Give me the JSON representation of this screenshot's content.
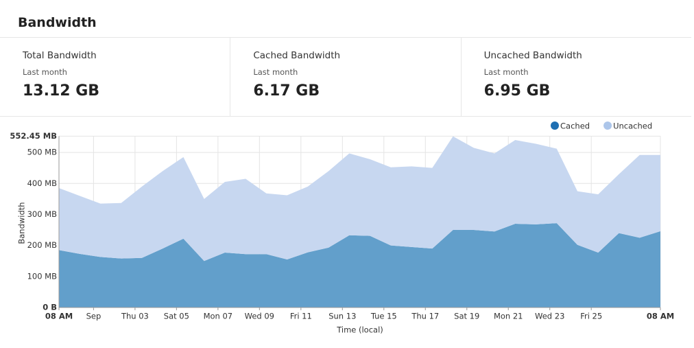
{
  "header": {
    "title": "Bandwidth"
  },
  "stats": [
    {
      "label": "Total Bandwidth",
      "period": "Last month",
      "value": "13.12 GB"
    },
    {
      "label": "Cached Bandwidth",
      "period": "Last month",
      "value": "6.17 GB"
    },
    {
      "label": "Uncached Bandwidth",
      "period": "Last month",
      "value": "6.95 GB"
    }
  ],
  "chart_data": {
    "type": "stacked-area",
    "ylabel": "Bandwidth",
    "xlabel": "Time (local)",
    "x": [
      0,
      1,
      2,
      3,
      4,
      5,
      6,
      7,
      8,
      9,
      10,
      11,
      12,
      13,
      14,
      15,
      16,
      17,
      18,
      19,
      20,
      21,
      22,
      23,
      24,
      25,
      26,
      27,
      28,
      29
    ],
    "series": [
      {
        "name": "Cached",
        "color": "#629fcb",
        "legend_color": "#1f6fb2",
        "values": [
          185,
          173,
          163,
          158,
          160,
          190,
          222,
          150,
          177,
          172,
          172,
          155,
          178,
          193,
          233,
          231,
          200,
          195,
          190,
          250,
          250,
          245,
          270,
          268,
          272,
          202,
          177,
          240,
          225,
          246
        ]
      },
      {
        "name": "Uncached",
        "color": "#c7d7f0",
        "legend_color": "#adc6ea",
        "values": [
          200,
          187,
          172,
          179,
          230,
          250,
          263,
          200,
          228,
          243,
          196,
          207,
          212,
          247,
          264,
          247,
          252,
          260,
          260,
          302,
          265,
          252,
          270,
          260,
          240,
          173,
          188,
          190,
          267,
          246
        ]
      }
    ],
    "xlim": [
      0,
      29
    ],
    "xticks": [
      {
        "value": 0,
        "label": "08 AM"
      },
      {
        "value": 1.667,
        "label": "Sep"
      },
      {
        "value": 3.667,
        "label": "Thu 03"
      },
      {
        "value": 5.667,
        "label": "Sat 05"
      },
      {
        "value": 7.667,
        "label": "Mon 07"
      },
      {
        "value": 9.667,
        "label": "Wed 09"
      },
      {
        "value": 11.667,
        "label": "Fri 11"
      },
      {
        "value": 13.667,
        "label": "Sun 13"
      },
      {
        "value": 15.667,
        "label": "Tue 15"
      },
      {
        "value": 17.667,
        "label": "Thu 17"
      },
      {
        "value": 19.667,
        "label": "Sat 19"
      },
      {
        "value": 21.667,
        "label": "Mon 21"
      },
      {
        "value": 23.667,
        "label": "Wed 23"
      },
      {
        "value": 25.667,
        "label": "Fri 25"
      },
      {
        "value": 29,
        "label": "08 AM"
      }
    ],
    "ylim": [
      0,
      552.45
    ],
    "yticks": [
      {
        "value": 0,
        "label": "0 B"
      },
      {
        "value": 100,
        "label": "100 MB"
      },
      {
        "value": 200,
        "label": "200 MB"
      },
      {
        "value": 300,
        "label": "300 MB"
      },
      {
        "value": 400,
        "label": "400 MB"
      },
      {
        "value": 500,
        "label": "500 MB"
      },
      {
        "value": 552.45,
        "label": "552.45 MB"
      }
    ],
    "grid": true
  }
}
